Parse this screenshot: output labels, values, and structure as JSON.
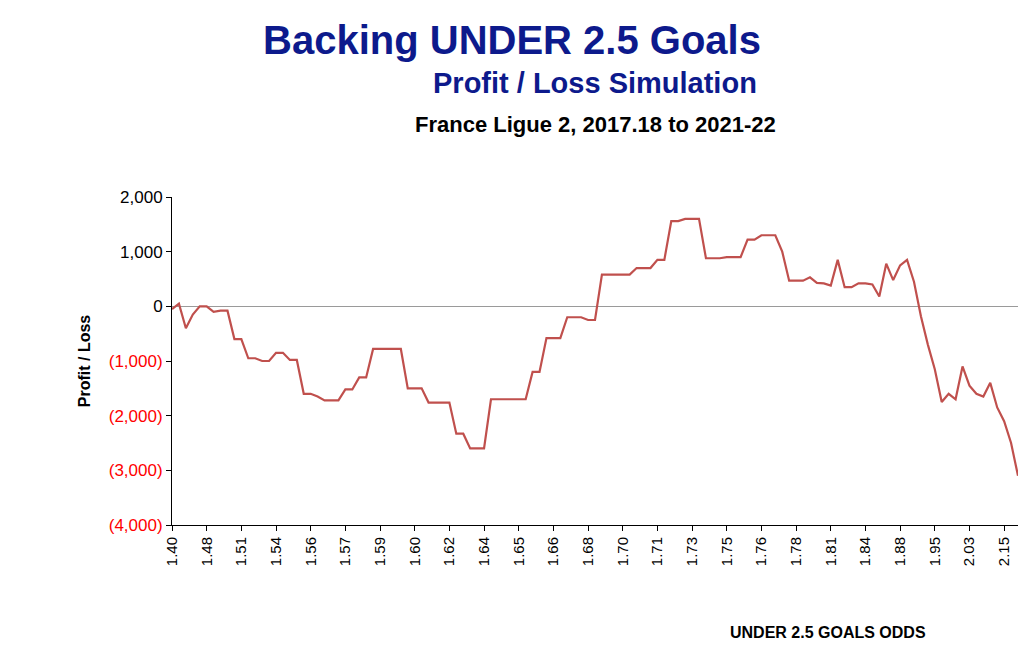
{
  "chart_data": {
    "type": "line",
    "title": "Backing UNDER 2.5 Goals",
    "subtitle": [
      "Profit / Loss Simulation",
      "France Ligue 2, 2017.18 to 2021-22"
    ],
    "x_label": "UNDER 2.5 GOALS ODDS",
    "y_label": "Profit / Loss",
    "color": "#c0504d",
    "grid": false,
    "categories": [
      "1.40",
      null,
      null,
      null,
      null,
      "1.48",
      null,
      null,
      null,
      null,
      "1.51",
      null,
      null,
      null,
      null,
      "1.54",
      null,
      null,
      null,
      null,
      "1.56",
      null,
      null,
      null,
      null,
      "1.57",
      null,
      null,
      null,
      null,
      "1.59",
      null,
      null,
      null,
      null,
      "1.60",
      null,
      null,
      null,
      null,
      "1.62",
      null,
      null,
      null,
      null,
      "1.64",
      null,
      null,
      null,
      null,
      "1.65",
      null,
      null,
      null,
      null,
      "1.66",
      null,
      null,
      null,
      null,
      "1.68",
      null,
      null,
      null,
      null,
      "1.70",
      null,
      null,
      null,
      null,
      "1.71",
      null,
      null,
      null,
      null,
      "1.73",
      null,
      null,
      null,
      null,
      "1.75",
      null,
      null,
      null,
      null,
      "1.76",
      null,
      null,
      null,
      null,
      "1.78",
      null,
      null,
      null,
      null,
      "1.81",
      null,
      null,
      null,
      null,
      "1.84",
      null,
      null,
      null,
      null,
      "1.88",
      null,
      null,
      null,
      null,
      "1.95",
      null,
      null,
      null,
      null,
      "2.03",
      null,
      null,
      null,
      null,
      "2.15",
      null,
      null
    ],
    "values": [
      -50,
      50,
      -400,
      -150,
      0,
      0,
      -100,
      -80,
      -80,
      -600,
      -600,
      -950,
      -950,
      -1000,
      -1000,
      -850,
      -850,
      -980,
      -980,
      -1600,
      -1600,
      -1650,
      -1720,
      -1720,
      -1720,
      -1520,
      -1520,
      -1300,
      -1300,
      -780,
      -780,
      -780,
      -780,
      -780,
      -1500,
      -1500,
      -1500,
      -1760,
      -1760,
      -1760,
      -1760,
      -2330,
      -2330,
      -2600,
      -2600,
      -2600,
      -1700,
      -1700,
      -1700,
      -1700,
      -1700,
      -1700,
      -1200,
      -1200,
      -580,
      -580,
      -580,
      -200,
      -200,
      -200,
      -250,
      -250,
      580,
      580,
      580,
      580,
      580,
      700,
      700,
      700,
      850,
      850,
      1560,
      1560,
      1600,
      1600,
      1600,
      880,
      880,
      880,
      900,
      900,
      900,
      1220,
      1220,
      1300,
      1300,
      1300,
      1000,
      470,
      470,
      470,
      530,
      430,
      420,
      380,
      850,
      350,
      350,
      420,
      420,
      400,
      180,
      780,
      480,
      750,
      850,
      450,
      -180,
      -700,
      -1150,
      -1750,
      -1600,
      -1700,
      -1100,
      -1450,
      -1600,
      -1650,
      -1400,
      -1850,
      -2100,
      -2500,
      -3100
    ],
    "ylim": [
      -4000,
      2000
    ],
    "yticks": [
      {
        "value": 2000,
        "label": "2,000"
      },
      {
        "value": 1000,
        "label": "1,000"
      },
      0,
      {
        "value": -1000,
        "label": "(1,000)"
      },
      {
        "value": -2000,
        "label": "(2,000)"
      },
      {
        "value": -3000,
        "label": "(3,000)"
      },
      {
        "value": -4000,
        "label": "(4,000)"
      }
    ]
  }
}
